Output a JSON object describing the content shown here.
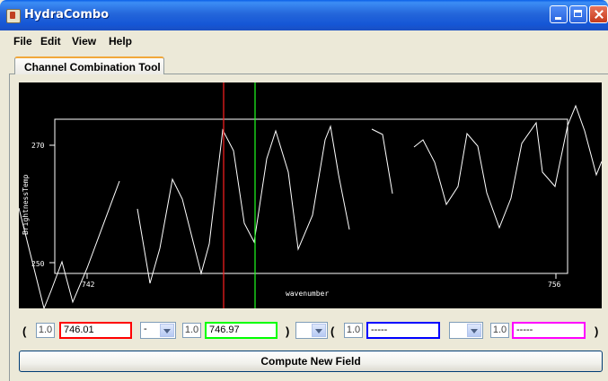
{
  "window": {
    "title": "HydraCombo"
  },
  "menu": {
    "file": "File",
    "edit": "Edit",
    "view": "View",
    "help": "Help"
  },
  "tab": {
    "label": "Channel Combination Tool"
  },
  "plot": {
    "ylabel": "BrightnessTemp",
    "xlabel": "wavenumber",
    "y_ticks": [
      "270",
      "250"
    ],
    "x_ticks": [
      "742",
      "756"
    ],
    "red_selector_value": "746.01",
    "green_selector_value": "746.97",
    "colors": {
      "background": "#000000",
      "line": "#FFFFFF",
      "red": "#FF2020",
      "green": "#20FF20"
    }
  },
  "formula": {
    "open_paren_1": "(",
    "coef1": "1.0",
    "field1": "746.01",
    "op1": "-",
    "coef2": "1.0",
    "field2": "746.97",
    "close_paren_1": ")",
    "op2": "",
    "open_paren_2": "(",
    "coef3": "1.0",
    "field3": "-----",
    "op3": "",
    "coef4": "1.0",
    "field4": "-----",
    "close_paren_2": ")",
    "field_colors": [
      "#FF0000",
      "#00FF00",
      "#0000FF",
      "#FF00FF"
    ]
  },
  "actions": {
    "compute": "Compute New Field"
  }
}
